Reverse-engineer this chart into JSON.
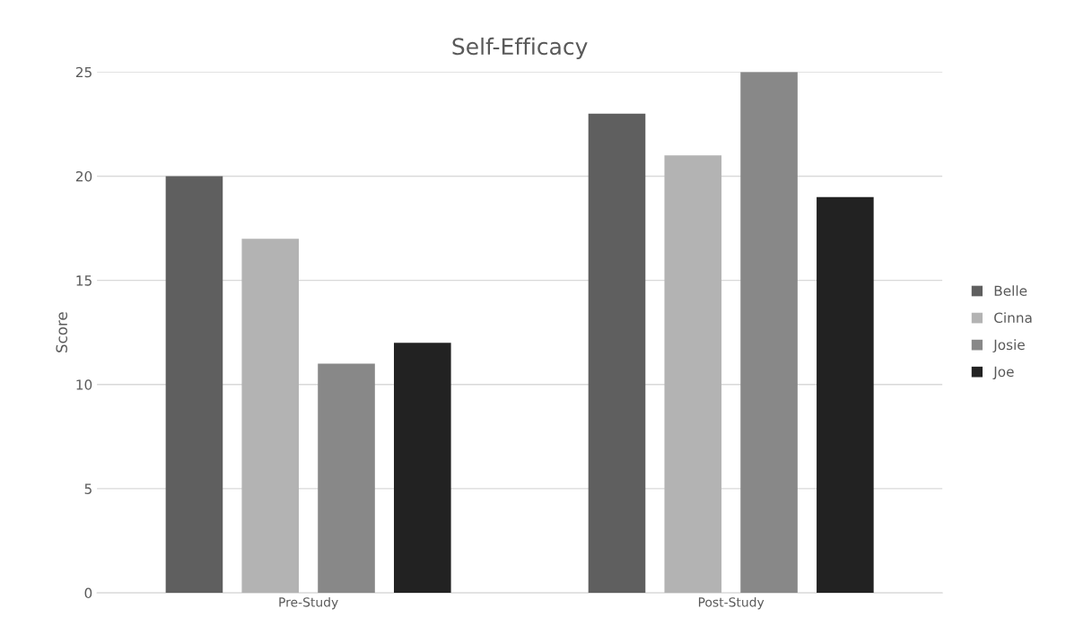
{
  "chart_data": {
    "type": "bar",
    "title": "Self-Efficacy",
    "ylabel": "Score",
    "categories": [
      "Pre-Study",
      "Post-Study"
    ],
    "series": [
      {
        "name": "Belle",
        "color": "#5f5f5f",
        "values": [
          20,
          23
        ]
      },
      {
        "name": "Cinna",
        "color": "#b3b3b3",
        "values": [
          17,
          21
        ]
      },
      {
        "name": "Josie",
        "color": "#888888",
        "values": [
          11,
          25
        ]
      },
      {
        "name": "Joe",
        "color": "#222222",
        "values": [
          12,
          19
        ]
      }
    ],
    "ylim": [
      0,
      25
    ],
    "yticks": [
      0,
      5,
      10,
      15,
      20,
      25
    ],
    "grid": "y",
    "legend": "right"
  }
}
